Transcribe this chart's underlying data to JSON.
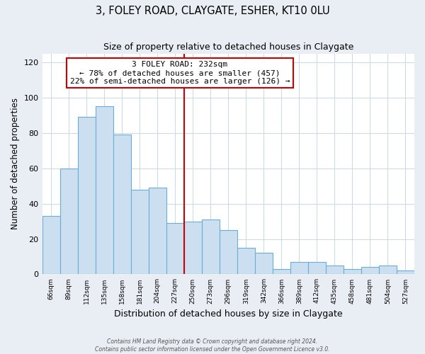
{
  "title": "3, FOLEY ROAD, CLAYGATE, ESHER, KT10 0LU",
  "subtitle": "Size of property relative to detached houses in Claygate",
  "xlabel": "Distribution of detached houses by size in Claygate",
  "ylabel": "Number of detached properties",
  "bar_labels": [
    "66sqm",
    "89sqm",
    "112sqm",
    "135sqm",
    "158sqm",
    "181sqm",
    "204sqm",
    "227sqm",
    "250sqm",
    "273sqm",
    "296sqm",
    "319sqm",
    "342sqm",
    "366sqm",
    "389sqm",
    "412sqm",
    "435sqm",
    "458sqm",
    "481sqm",
    "504sqm",
    "527sqm"
  ],
  "bar_values": [
    33,
    60,
    89,
    95,
    79,
    48,
    49,
    29,
    30,
    31,
    25,
    15,
    12,
    3,
    7,
    7,
    5,
    3,
    4,
    5,
    2
  ],
  "bar_color": "#ccdff0",
  "bar_edge_color": "#6aaed6",
  "marker_index": 7,
  "marker_label": "3 FOLEY ROAD: 232sqm",
  "marker_color": "#cc0000",
  "annotation_line1": "← 78% of detached houses are smaller (457)",
  "annotation_line2": "22% of semi-detached houses are larger (126) →",
  "annotation_box_facecolor": "#ffffff",
  "annotation_box_edgecolor": "#cc0000",
  "ylim": [
    0,
    125
  ],
  "yticks": [
    0,
    20,
    40,
    60,
    80,
    100,
    120
  ],
  "footer_line1": "Contains HM Land Registry data © Crown copyright and database right 2024.",
  "footer_line2": "Contains public sector information licensed under the Open Government Licence v3.0.",
  "bg_color": "#e8eef4",
  "plot_bg_color": "#ffffff",
  "grid_color": "#c8d8e8"
}
